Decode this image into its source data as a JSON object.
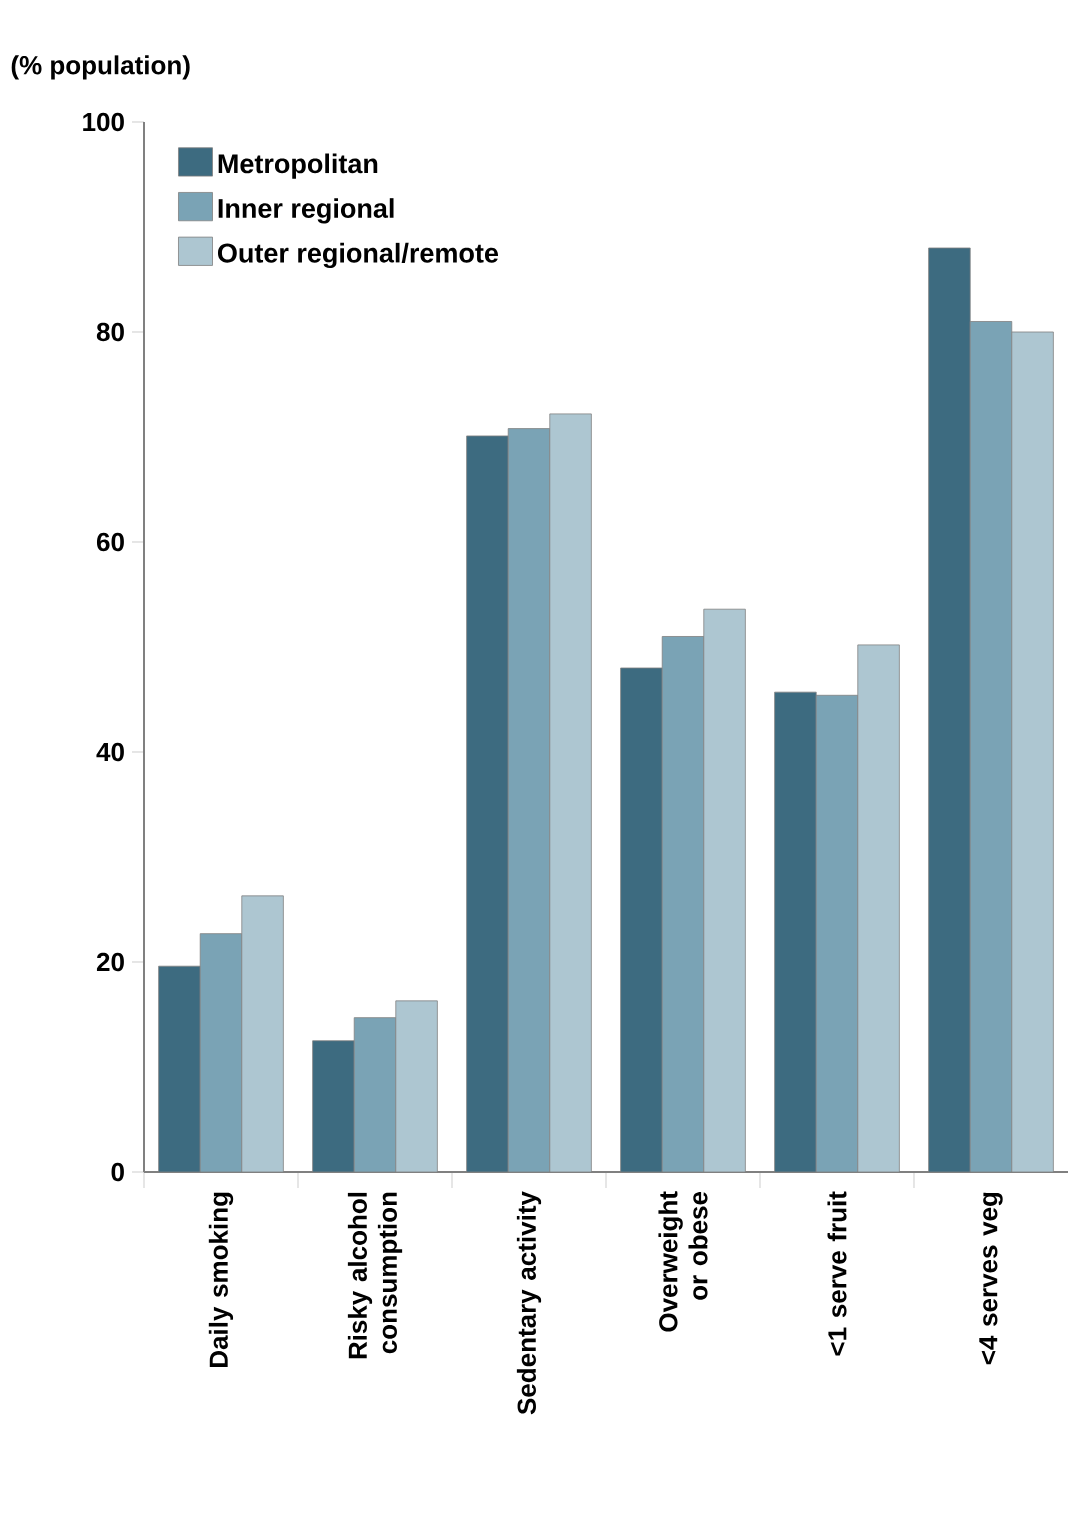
{
  "chart_data": {
    "type": "bar",
    "ylabel": "(% population)",
    "categories": [
      "Daily smoking",
      "Risky alcohol consumption",
      "Sedentary activity",
      "Overweight or obese",
      "<1 serve fruit",
      "<4 serves veg"
    ],
    "series": [
      {
        "name": "Metropolitan",
        "color": "#3d6b80",
        "values": [
          19.6,
          12.5,
          70.1,
          48.0,
          45.7,
          88.0
        ]
      },
      {
        "name": "Inner regional",
        "color": "#7aa3b5",
        "values": [
          22.7,
          14.7,
          70.8,
          51.0,
          45.4,
          81.0
        ]
      },
      {
        "name": "Outer regional/remote",
        "color": "#adc6d1",
        "values": [
          26.3,
          16.3,
          72.2,
          53.6,
          50.2,
          80.0
        ]
      }
    ],
    "ylim": [
      0,
      100
    ],
    "yticks": [
      0,
      20,
      40,
      60,
      80,
      100
    ],
    "grid": false,
    "legend": "top left"
  }
}
